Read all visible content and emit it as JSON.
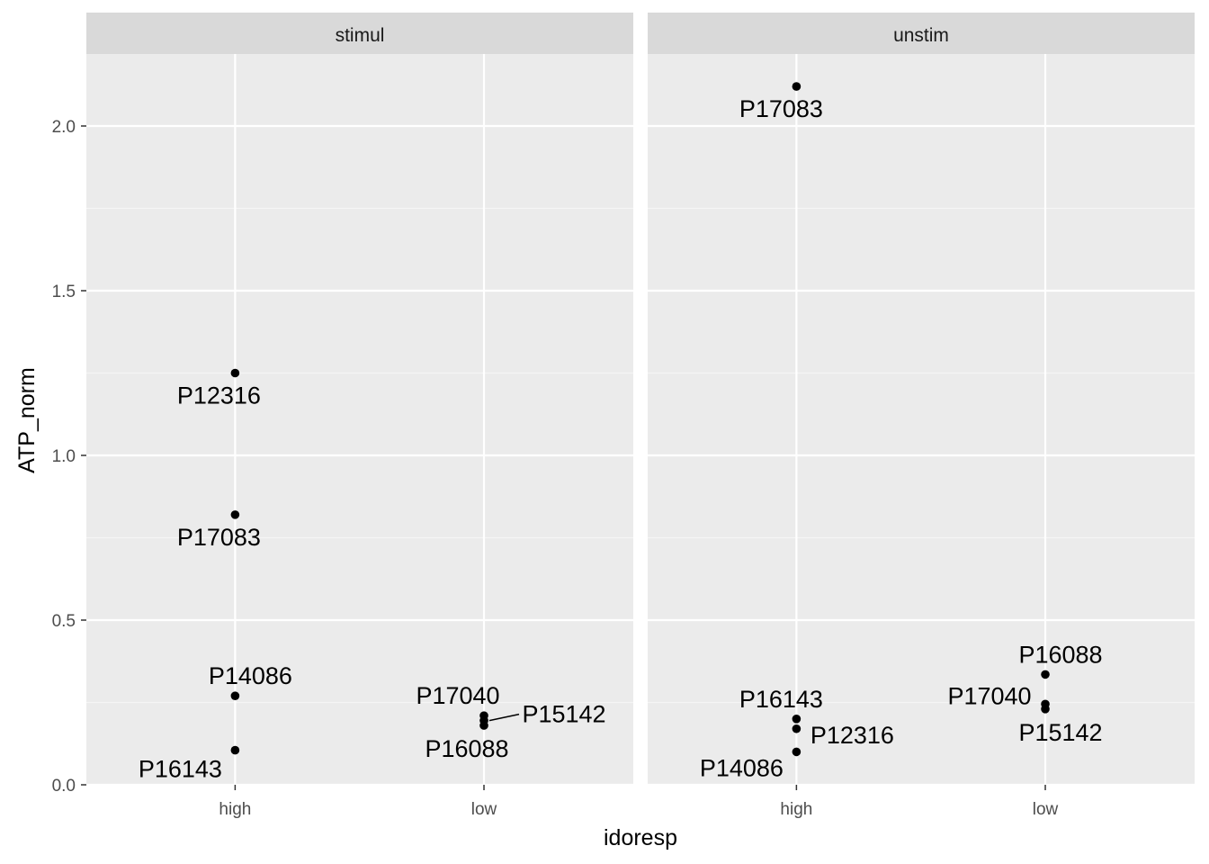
{
  "chart_data": {
    "type": "scatter",
    "xlabel": "idoresp",
    "ylabel": "ATP_norm",
    "x_categories": [
      "high",
      "low"
    ],
    "ylim": [
      0,
      2.22
    ],
    "yticks": [
      "0.0",
      "0.5",
      "1.0",
      "1.5",
      "2.0"
    ],
    "grid": true,
    "facets": [
      {
        "label": "stimul",
        "points": [
          {
            "x": "high",
            "y": 1.25,
            "label": "P12316"
          },
          {
            "x": "high",
            "y": 0.82,
            "label": "P17083"
          },
          {
            "x": "high",
            "y": 0.27,
            "label": "P14086"
          },
          {
            "x": "high",
            "y": 0.105,
            "label": "P16143"
          },
          {
            "x": "low",
            "y": 0.21,
            "label": "P17040"
          },
          {
            "x": "low",
            "y": 0.195,
            "label": "P15142"
          },
          {
            "x": "low",
            "y": 0.18,
            "label": "P16088"
          }
        ]
      },
      {
        "label": "unstim",
        "points": [
          {
            "x": "high",
            "y": 2.12,
            "label": "P17083"
          },
          {
            "x": "high",
            "y": 0.2,
            "label": "P16143"
          },
          {
            "x": "high",
            "y": 0.17,
            "label": "P12316"
          },
          {
            "x": "high",
            "y": 0.1,
            "label": "P14086"
          },
          {
            "x": "low",
            "y": 0.335,
            "label": "P16088"
          },
          {
            "x": "low",
            "y": 0.245,
            "label": "P17040"
          },
          {
            "x": "low",
            "y": 0.23,
            "label": "P15142"
          }
        ]
      }
    ]
  }
}
